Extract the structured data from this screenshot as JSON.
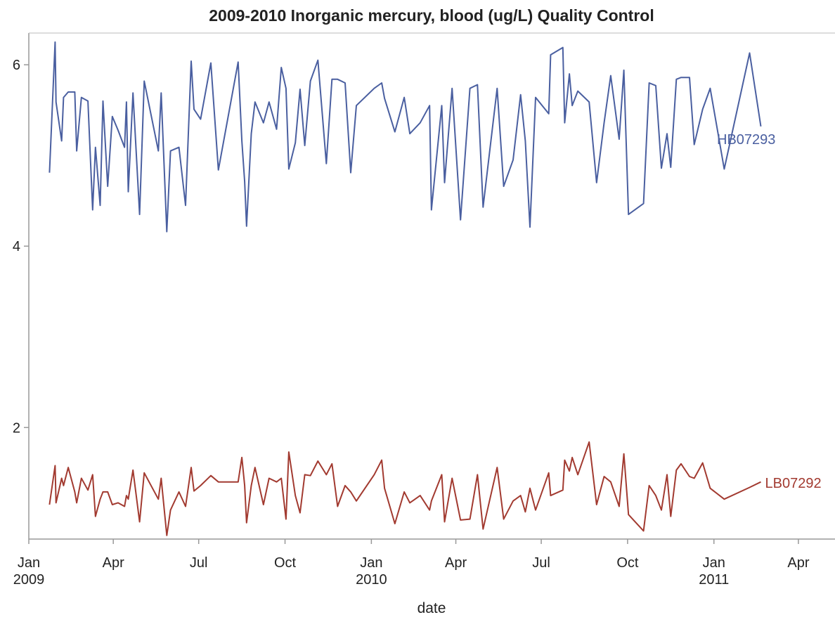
{
  "chart_data": {
    "type": "line",
    "title": "2009-2010 Inorganic mercury, blood (ug/L) Quality Control",
    "x_label": "date",
    "x": [
      "2009-01-23",
      "2009-01-29",
      "2009-01-30",
      "2009-02-05",
      "2009-02-07",
      "2009-02-12",
      "2009-02-19",
      "2009-02-21",
      "2009-02-26",
      "2009-03-05",
      "2009-03-10",
      "2009-03-13",
      "2009-03-18",
      "2009-03-21",
      "2009-03-26",
      "2009-03-31",
      "2009-04-06",
      "2009-04-13",
      "2009-04-15",
      "2009-04-17",
      "2009-04-22",
      "2009-04-29",
      "2009-05-04",
      "2009-05-19",
      "2009-05-22",
      "2009-05-28",
      "2009-06-01",
      "2009-06-10",
      "2009-06-17",
      "2009-06-23",
      "2009-06-26",
      "2009-07-03",
      "2009-07-14",
      "2009-07-22",
      "2009-08-12",
      "2009-08-16",
      "2009-08-19",
      "2009-08-21",
      "2009-08-26",
      "2009-08-30",
      "2009-09-08",
      "2009-09-14",
      "2009-09-22",
      "2009-09-27",
      "2009-10-02",
      "2009-10-05",
      "2009-10-12",
      "2009-10-17",
      "2009-10-22",
      "2009-10-28",
      "2009-11-05",
      "2009-11-14",
      "2009-11-20",
      "2009-11-26",
      "2009-12-04",
      "2009-12-10",
      "2009-12-16",
      "2010-01-04",
      "2010-01-12",
      "2010-01-15",
      "2010-01-26",
      "2010-02-05",
      "2010-02-11",
      "2010-02-22",
      "2010-03-04",
      "2010-03-06",
      "2010-03-17",
      "2010-03-20",
      "2010-03-28",
      "2010-04-06",
      "2010-04-16",
      "2010-04-24",
      "2010-04-30",
      "2010-05-15",
      "2010-05-22",
      "2010-06-01",
      "2010-06-09",
      "2010-06-14",
      "2010-06-19",
      "2010-06-25",
      "2010-07-09",
      "2010-07-11",
      "2010-07-24",
      "2010-07-26",
      "2010-07-31",
      "2010-08-03",
      "2010-08-09",
      "2010-08-21",
      "2010-08-29",
      "2010-09-06",
      "2010-09-13",
      "2010-09-22",
      "2010-09-27",
      "2010-10-02",
      "2010-10-18",
      "2010-10-24",
      "2010-10-31",
      "2010-11-06",
      "2010-11-12",
      "2010-11-16",
      "2010-11-22",
      "2010-11-27",
      "2010-12-06",
      "2010-12-11",
      "2010-12-20",
      "2010-12-28",
      "2011-01-12",
      "2011-02-08",
      "2011-02-20"
    ],
    "series": [
      {
        "name": "HB07293",
        "color": "#4a5fa0",
        "values": [
          4.81,
          6.25,
          5.59,
          5.16,
          5.64,
          5.7,
          5.7,
          5.05,
          5.64,
          5.6,
          4.4,
          5.09,
          4.45,
          5.6,
          4.66,
          5.43,
          5.28,
          5.09,
          5.59,
          4.6,
          5.69,
          4.35,
          5.82,
          5.05,
          5.69,
          4.16,
          5.05,
          5.09,
          4.45,
          6.04,
          5.51,
          5.4,
          6.02,
          4.84,
          6.03,
          5.16,
          4.71,
          4.22,
          5.24,
          5.59,
          5.36,
          5.59,
          5.29,
          5.97,
          5.74,
          4.85,
          5.14,
          5.73,
          5.11,
          5.82,
          6.05,
          4.91,
          5.84,
          5.84,
          5.8,
          4.81,
          5.55,
          5.74,
          5.8,
          5.63,
          5.26,
          5.64,
          5.24,
          5.36,
          5.55,
          4.4,
          5.55,
          4.7,
          5.74,
          4.29,
          5.74,
          5.78,
          4.43,
          5.74,
          4.66,
          4.95,
          5.67,
          5.16,
          4.21,
          5.64,
          5.46,
          6.11,
          6.19,
          5.36,
          5.9,
          5.55,
          5.71,
          5.59,
          4.7,
          5.36,
          5.88,
          5.18,
          5.94,
          4.35,
          4.47,
          5.8,
          5.77,
          4.86,
          5.24,
          4.87,
          5.84,
          5.86,
          5.86,
          5.12,
          5.51,
          5.74,
          4.85,
          6.13,
          5.32
        ]
      },
      {
        "name": "LB07292",
        "color": "#a23a30",
        "values": [
          1.15,
          1.58,
          1.17,
          1.44,
          1.36,
          1.56,
          1.29,
          1.17,
          1.44,
          1.31,
          1.48,
          1.02,
          1.21,
          1.29,
          1.29,
          1.15,
          1.17,
          1.13,
          1.25,
          1.21,
          1.53,
          0.96,
          1.5,
          1.21,
          1.44,
          0.81,
          1.09,
          1.29,
          1.13,
          1.56,
          1.3,
          1.36,
          1.47,
          1.4,
          1.4,
          1.67,
          1.36,
          0.95,
          1.36,
          1.56,
          1.15,
          1.44,
          1.4,
          1.44,
          0.99,
          1.73,
          1.25,
          1.06,
          1.48,
          1.47,
          1.63,
          1.48,
          1.6,
          1.13,
          1.36,
          1.29,
          1.19,
          1.48,
          1.64,
          1.33,
          0.94,
          1.29,
          1.17,
          1.25,
          1.09,
          1.19,
          1.48,
          0.96,
          1.44,
          0.98,
          0.99,
          1.48,
          0.88,
          1.56,
          0.99,
          1.19,
          1.25,
          1.07,
          1.33,
          1.09,
          1.5,
          1.25,
          1.31,
          1.64,
          1.52,
          1.67,
          1.48,
          1.84,
          1.15,
          1.46,
          1.4,
          1.13,
          1.71,
          1.04,
          0.86,
          1.36,
          1.25,
          1.09,
          1.48,
          1.02,
          1.53,
          1.6,
          1.46,
          1.44,
          1.61,
          1.33,
          1.21,
          1.34,
          1.4
        ]
      }
    ],
    "xlim": [
      "2009-01-01",
      "2011-05-10"
    ],
    "xticks": [
      {
        "value": "2009-01-01",
        "label": "Jan 2009"
      },
      {
        "value": "2009-04-01",
        "label": "Apr"
      },
      {
        "value": "2009-07-01",
        "label": "Jul"
      },
      {
        "value": "2009-10-01",
        "label": "Oct"
      },
      {
        "value": "2010-01-01",
        "label": "Jan 2010"
      },
      {
        "value": "2010-04-01",
        "label": "Apr"
      },
      {
        "value": "2010-07-01",
        "label": "Jul"
      },
      {
        "value": "2010-10-01",
        "label": "Oct"
      },
      {
        "value": "2011-01-01",
        "label": "Jan 2011"
      },
      {
        "value": "2011-04-01",
        "label": "Apr"
      }
    ],
    "ylim": [
      0.77,
      6.35
    ],
    "yticks": [
      2,
      4,
      6
    ]
  }
}
